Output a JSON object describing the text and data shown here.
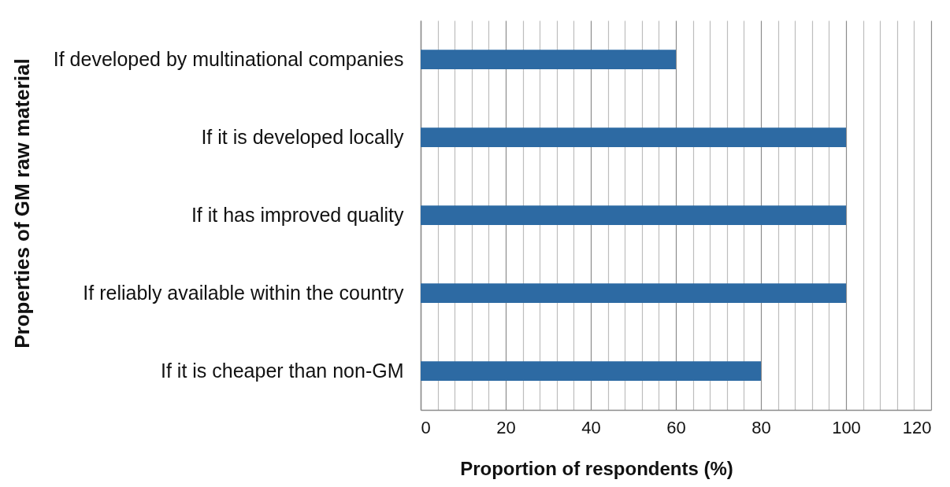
{
  "chart_data": {
    "type": "bar",
    "orientation": "horizontal",
    "xlabel": "Proportion of respondents (%)",
    "ylabel": "Properties of GM raw material",
    "categories": [
      "If developed by multinational companies",
      "If it is developed locally",
      "If it has improved quality",
      "If reliably available within the country",
      "If it is cheaper than non-GM"
    ],
    "values": [
      60,
      100,
      100,
      100,
      80
    ],
    "color": "#2d6aa3",
    "xlim": [
      0,
      120
    ],
    "xticks": [
      0,
      {
        "value": 4,
        "label": null
      },
      {
        "value": 8,
        "label": null
      },
      {
        "value": 12,
        "label": null
      },
      {
        "value": 16,
        "label": null
      },
      20,
      {
        "value": 24,
        "label": null
      },
      {
        "value": 28,
        "label": null
      },
      {
        "value": 32,
        "label": null
      },
      {
        "value": 36,
        "label": null
      },
      40,
      {
        "value": 44,
        "label": null
      },
      {
        "value": 48,
        "label": null
      },
      {
        "value": 52,
        "label": null
      },
      {
        "value": 56,
        "label": null
      },
      60,
      {
        "value": 64,
        "label": null
      },
      {
        "value": 68,
        "label": null
      },
      {
        "value": 72,
        "label": null
      },
      {
        "value": 76,
        "label": null
      },
      80,
      {
        "value": 84,
        "label": null
      },
      {
        "value": 88,
        "label": null
      },
      {
        "value": 92,
        "label": null
      },
      {
        "value": 96,
        "label": null
      },
      100,
      {
        "value": 104,
        "label": null
      },
      {
        "value": 108,
        "label": null
      },
      {
        "value": 112,
        "label": null
      },
      {
        "value": 116,
        "label": null
      },
      120
    ],
    "grid": "x"
  }
}
